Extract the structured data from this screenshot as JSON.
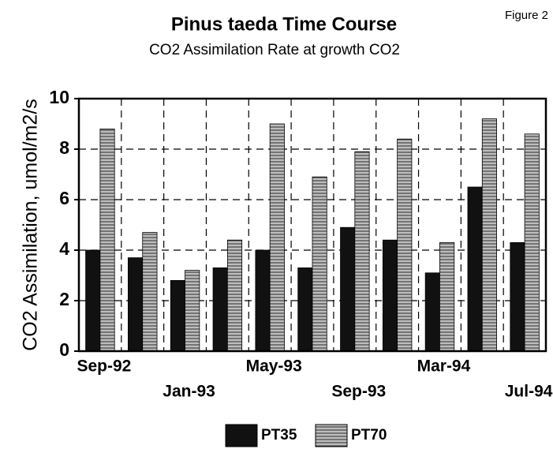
{
  "chart_data": {
    "type": "bar",
    "title": "Pinus taeda Time Course",
    "subtitle": "CO2 Assimilation Rate at growth CO2",
    "annotation": "Figure 2",
    "y_label": "CO2 Assimilation, umol/m2/s",
    "categories": [
      "Sep-92",
      null,
      "Jan-93",
      null,
      "May-93",
      null,
      "Sep-93",
      null,
      "Mar-94",
      null,
      "Jul-94"
    ],
    "series": [
      {
        "name": "PT35",
        "color": "#111111",
        "values": [
          4.0,
          3.7,
          2.8,
          3.3,
          4.0,
          3.3,
          4.9,
          4.4,
          3.1,
          6.5,
          4.3
        ]
      },
      {
        "name": "PT70",
        "color": "#8c8c8c",
        "values": [
          8.8,
          4.7,
          3.2,
          4.4,
          9.0,
          6.9,
          7.9,
          8.4,
          4.3,
          9.2,
          8.6
        ]
      }
    ],
    "ylim": [
      0,
      10
    ],
    "yticks": [
      0,
      2,
      4,
      6,
      8,
      10
    ],
    "grid": true,
    "legend": "bottom"
  }
}
